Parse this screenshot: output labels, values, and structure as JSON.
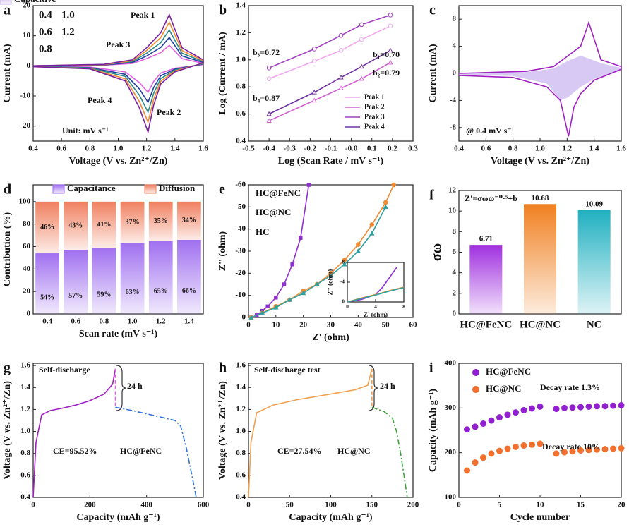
{
  "chart_data": [
    {
      "type": "line",
      "panel": "a",
      "xlabel": "Voltage (V vs. Zn²⁺/Zn)",
      "ylabel": "Current (mA)",
      "xlim": [
        0.4,
        1.6
      ],
      "ylim": [
        -25,
        20
      ],
      "xticks": [
        0.4,
        0.6,
        0.8,
        {
          "value": 1,
          "label": "1.0"
        },
        1.2,
        1.4,
        1.6
      ],
      "yticks": [
        -20,
        -10,
        0,
        10,
        20
      ],
      "annotations": [
        "Peak 1",
        "Peak 3",
        "Peak 4",
        "Peak 2",
        "Unit: mV s⁻¹"
      ],
      "series": [
        {
          "name": "0.4",
          "color": "#e060e0",
          "x": [
            0.4,
            0.9,
            1.1,
            1.2,
            1.3,
            1.36,
            1.45,
            1.6,
            1.6,
            1.4,
            1.3,
            1.25,
            1.21,
            1.15,
            1.05,
            0.8,
            0.4
          ],
          "values": [
            0,
            0.2,
            0.8,
            2.4,
            4.4,
            6.8,
            2.4,
            0.8,
            0.4,
            -0.8,
            -2.4,
            -5.2,
            -8.8,
            -5.6,
            -2,
            -0.4,
            -0.1
          ]
        },
        {
          "name": "0.6",
          "color": "#1f3fa0",
          "x": [
            0.4,
            0.9,
            1.1,
            1.2,
            1.3,
            1.36,
            1.45,
            1.6,
            1.6,
            1.4,
            1.3,
            1.25,
            1.21,
            1.15,
            1.05,
            0.8,
            0.4
          ],
          "values": [
            0,
            0.3,
            1.1,
            3.3,
            6.1,
            9.4,
            3.3,
            1.1,
            0.6,
            -1.1,
            -3.3,
            -7.2,
            -12.1,
            -7.7,
            -2.8,
            -0.6,
            -0.2
          ]
        },
        {
          "name": "0.8",
          "color": "#2a8a8a",
          "x": [
            0.4,
            0.9,
            1.1,
            1.2,
            1.3,
            1.36,
            1.45,
            1.6,
            1.6,
            1.4,
            1.3,
            1.25,
            1.21,
            1.15,
            1.05,
            0.8,
            0.4
          ],
          "values": [
            0,
            0.4,
            1.4,
            4.2,
            7.7,
            11.9,
            4.2,
            1.4,
            0.7,
            -1.4,
            -4.2,
            -9.1,
            -15.4,
            -9.8,
            -3.5,
            -0.7,
            -0.2
          ]
        },
        {
          "name": "1.0",
          "color": "#f08a30",
          "x": [
            0.4,
            0.9,
            1.1,
            1.2,
            1.3,
            1.36,
            1.45,
            1.6,
            1.6,
            1.4,
            1.3,
            1.25,
            1.21,
            1.15,
            1.05,
            0.8,
            0.4
          ],
          "values": [
            0,
            0.4,
            1.7,
            5.1,
            9.4,
            14.5,
            5.1,
            1.7,
            0.9,
            -1.7,
            -5.1,
            -11.1,
            -18.7,
            -11.9,
            -4.3,
            -0.9,
            -0.3
          ]
        },
        {
          "name": "1.2",
          "color": "#7a1fa0",
          "x": [
            0.4,
            0.9,
            1.1,
            1.2,
            1.3,
            1.36,
            1.45,
            1.6,
            1.6,
            1.4,
            1.3,
            1.25,
            1.21,
            1.15,
            1.05,
            0.8,
            0.4
          ],
          "values": [
            0,
            0.5,
            2,
            6,
            11,
            17,
            6,
            2,
            1,
            -2,
            -6,
            -13,
            -22,
            -14,
            -5,
            -1,
            -0.3
          ]
        }
      ]
    },
    {
      "type": "line",
      "panel": "b",
      "xlabel": "Log (Scan Rate / mV s⁻¹)",
      "ylabel": "Log (Current / mA)",
      "xlim": [
        -0.5,
        0.3
      ],
      "ylim": [
        0.4,
        1.4
      ],
      "xticks": [
        -0.5,
        -0.4,
        -0.3,
        -0.2,
        -0.1,
        {
          "value": 0,
          "label": "-0.0"
        },
        0.1,
        0.2,
        0.3
      ],
      "yticks": [
        0.4,
        0.6,
        0.8,
        {
          "value": 1,
          "label": "1.0"
        },
        1.2,
        1.4
      ],
      "annotations": [
        "b₃=0.72",
        "b₁=0.70",
        "b₂=0.79",
        "b₄=0.87"
      ],
      "series": [
        {
          "name": "Peak 1",
          "color": "#f0a8f0",
          "marker": "circle",
          "x": [
            -0.4,
            -0.18,
            -0.05,
            0.05,
            0.19
          ],
          "values": [
            0.86,
            0.99,
            1.07,
            1.15,
            1.25
          ]
        },
        {
          "name": "Peak 2",
          "color": "#d060d0",
          "marker": "triangle",
          "x": [
            -0.4,
            -0.18,
            -0.05,
            0.05,
            0.19
          ],
          "values": [
            0.55,
            0.7,
            0.79,
            0.86,
            0.98
          ]
        },
        {
          "name": "Peak 3",
          "color": "#a040c0",
          "marker": "circle",
          "x": [
            -0.4,
            -0.18,
            -0.05,
            0.05,
            0.19
          ],
          "values": [
            0.94,
            1.08,
            1.18,
            1.26,
            1.33
          ]
        },
        {
          "name": "Peak 4",
          "color": "#7030a0",
          "marker": "triangle",
          "x": [
            -0.4,
            -0.18,
            -0.05,
            0.05,
            0.19
          ],
          "values": [
            0.6,
            0.76,
            0.87,
            0.95,
            1.07
          ]
        }
      ]
    },
    {
      "type": "line",
      "panel": "c",
      "xlabel": "Voltage (V vs. Zn²⁺/Zn)",
      "ylabel": "Current (mA)",
      "xlim": [
        0.4,
        1.6
      ],
      "ylim": [
        -10,
        10
      ],
      "xticks": [
        0.4,
        0.6,
        0.8,
        {
          "value": 1,
          "label": "1.0"
        },
        1.2,
        1.4,
        1.6
      ],
      "yticks": [
        -8,
        -4,
        0,
        4,
        8
      ],
      "annotations": [
        "@ 0.4 mV s⁻¹"
      ],
      "series": [
        {
          "name": "Capacitive",
          "color": "#c8b0f0",
          "fill": true,
          "x": [
            0.4,
            0.9,
            1.1,
            1.2,
            1.3,
            1.36,
            1.45,
            1.6,
            1.6,
            1.4,
            1.3,
            1.25,
            1.21,
            1.15,
            1.05,
            0.8,
            0.4
          ],
          "values": [
            0,
            0.2,
            0.7,
            1.8,
            2.6,
            2.2,
            1.5,
            0.8,
            0.5,
            -0.8,
            -2,
            -2.8,
            -3.5,
            -4,
            -1.5,
            -0.4,
            -0.2
          ]
        },
        {
          "color": "#a020c0",
          "x": [
            0.4,
            0.9,
            1.1,
            1.2,
            1.3,
            1.36,
            1.45,
            1.6,
            1.6,
            1.4,
            1.3,
            1.25,
            1.21,
            1.15,
            1.05,
            0.8,
            0.4
          ],
          "values": [
            0,
            0.3,
            1,
            2.5,
            4,
            7.5,
            2,
            1,
            0.6,
            -1,
            -3,
            -5,
            -9.3,
            -4,
            -2,
            -0.6,
            -0.3
          ]
        }
      ]
    },
    {
      "type": "stacked-bar",
      "panel": "d",
      "xlabel": "Scan rate (mV s⁻¹)",
      "ylabel": "Contribution (%)",
      "categories": [
        "0.4",
        "0.6",
        "0.8",
        "1.0",
        "1.2",
        "1.4"
      ],
      "ylim": [
        0,
        115
      ],
      "yticks": [
        0,
        20,
        40,
        60,
        80,
        100
      ],
      "series": [
        {
          "name": "Capacitance",
          "color": "#a070f0",
          "values": [
            54,
            57,
            59,
            63,
            65,
            66
          ],
          "value_labels": [
            "54%",
            "57%",
            "59%",
            "63%",
            "65%",
            "66%"
          ]
        },
        {
          "name": "Diffusion",
          "color": "#f08060",
          "values": [
            46,
            43,
            41,
            37,
            35,
            34
          ],
          "value_labels": [
            "46%",
            "43%",
            "41%",
            "37%",
            "35%",
            "34%"
          ]
        }
      ]
    },
    {
      "type": "line",
      "panel": "e",
      "xlabel": "Z' (ohm)",
      "ylabel": "Z'' (ohm)",
      "xlim": [
        0,
        60
      ],
      "ylim": [
        0,
        -60
      ],
      "xticks": [
        0,
        10,
        20,
        30,
        40,
        50,
        60
      ],
      "yticks": [
        0,
        -10,
        -20,
        -30,
        -40,
        -50,
        -60
      ],
      "series": [
        {
          "name": "HC@FeNC",
          "color": "#9030d0",
          "marker": "square",
          "x": [
            1,
            3,
            5,
            7,
            10,
            13,
            16,
            19,
            22
          ],
          "values": [
            0,
            -1,
            -3,
            -5,
            -9,
            -15,
            -24,
            -36,
            -60
          ]
        },
        {
          "name": "HC@NC",
          "color": "#f08a30",
          "marker": "circle",
          "x": [
            1,
            5,
            10,
            15,
            20,
            25,
            30,
            35,
            40,
            45,
            50,
            53
          ],
          "values": [
            0,
            -2,
            -5,
            -8,
            -12,
            -15,
            -20,
            -26,
            -33,
            -42,
            -52,
            -60
          ]
        },
        {
          "name": "HC",
          "color": "#30a0a0",
          "marker": "triangle",
          "x": [
            1,
            5,
            10,
            15,
            20,
            25,
            30,
            35,
            40,
            45,
            50
          ],
          "values": [
            0,
            -2,
            -4.5,
            -8,
            -11,
            -15,
            -19,
            -24,
            -30,
            -38,
            -50
          ]
        }
      ]
    },
    {
      "type": "line",
      "xlabel": "Z' (ohm)",
      "ylabel": "Z'' (ohm)",
      "xlim": [
        0,
        8
      ],
      "ylim": [
        0,
        -8
      ],
      "xticks": [
        0,
        4,
        8
      ],
      "yticks": [
        0,
        -4,
        -8
      ],
      "series": [
        {
          "color": "#9030d0",
          "x": [
            0,
            2,
            4,
            5,
            6,
            7
          ],
          "values": [
            0,
            -0.5,
            -1.5,
            -3,
            -5,
            -7
          ]
        },
        {
          "color": "#f08a30",
          "x": [
            0,
            2,
            4,
            6,
            8
          ],
          "values": [
            0,
            -0.8,
            -1.5,
            -2.3,
            -3
          ]
        },
        {
          "color": "#30a0a0",
          "x": [
            0,
            2,
            4,
            6,
            8
          ],
          "values": [
            0,
            -0.7,
            -1.4,
            -2.2,
            -2.9
          ]
        }
      ]
    },
    {
      "type": "bar",
      "panel": "f",
      "ylabel": "σω",
      "annotations": [
        "Z'=σωω⁻⁰·⁵+b"
      ],
      "categories": [
        "HC@FeNC",
        "HC@NC",
        "NC"
      ],
      "values": [
        6.71,
        10.68,
        10.09
      ],
      "colors": [
        "#a030e0",
        "#f08020",
        "#20b0c0"
      ],
      "ylim": [
        0,
        12
      ],
      "yticks": [
        0,
        2,
        4,
        6,
        8,
        10,
        12
      ]
    },
    {
      "type": "line",
      "panel": "g",
      "xlabel": "Capacity (mAh g⁻¹)",
      "ylabel": "Voltage (V vs. Zn²⁺/Zn)",
      "xlim": [
        0,
        600
      ],
      "ylim": [
        0.4,
        1.62
      ],
      "xticks": [
        0,
        200,
        400,
        600
      ],
      "yticks": [
        0.4,
        0.6,
        0.8,
        {
          "value": 1,
          "label": "1.0"
        },
        1.2,
        1.4,
        1.6
      ],
      "annotations": [
        "Self-discharge",
        "24 h",
        "CE=95.52%",
        "HC@FeNC"
      ],
      "series": [
        {
          "color": "#a020c0",
          "x": [
            0,
            10,
            30,
            60,
            100,
            150,
            200,
            250,
            280,
            290
          ],
          "values": [
            0.4,
            0.9,
            1.15,
            1.19,
            1.21,
            1.24,
            1.28,
            1.34,
            1.43,
            1.57
          ]
        },
        {
          "color": "#e060e0",
          "dash": "dashed",
          "x": [
            290,
            290
          ],
          "values": [
            1.57,
            1.22
          ]
        },
        {
          "color": "#3070e0",
          "dash": "dashdot",
          "x": [
            290,
            350,
            400,
            450,
            500,
            520,
            540,
            560,
            575
          ],
          "values": [
            1.22,
            1.19,
            1.16,
            1.13,
            1.1,
            1.05,
            0.85,
            0.6,
            0.4
          ]
        }
      ]
    },
    {
      "type": "line",
      "panel": "h",
      "xlabel": "Capacity (mAh g⁻¹)",
      "ylabel": "Voltage (V vs. Zn²⁺/Zn)",
      "xlim": [
        0,
        200
      ],
      "ylim": [
        0.4,
        1.62
      ],
      "xticks": [
        0,
        50,
        100,
        150,
        200
      ],
      "yticks": [
        0.4,
        0.6,
        0.8,
        {
          "value": 1,
          "label": "1.0"
        },
        1.2,
        1.4,
        1.6
      ],
      "annotations": [
        "Self-discharge test",
        "24 h",
        "CE=27.54%",
        "HC@NC"
      ],
      "series": [
        {
          "color": "#f0a050",
          "x": [
            0,
            3,
            10,
            30,
            60,
            100,
            130,
            145,
            150
          ],
          "values": [
            0.4,
            0.9,
            1.17,
            1.24,
            1.29,
            1.34,
            1.38,
            1.42,
            1.57
          ]
        },
        {
          "color": "#f0a050",
          "dash": "dashed",
          "x": [
            150,
            150
          ],
          "values": [
            1.57,
            1.22
          ]
        },
        {
          "color": "#40a040",
          "dash": "dashdot",
          "x": [
            150,
            165,
            175,
            180,
            185,
            190,
            193
          ],
          "values": [
            1.22,
            1.18,
            1.12,
            1,
            0.8,
            0.55,
            0.4
          ]
        }
      ]
    },
    {
      "type": "scatter",
      "panel": "i",
      "xlabel": "Cycle number",
      "ylabel": "Capacity (mAh g⁻¹)",
      "xlim": [
        0,
        20
      ],
      "ylim": [
        100,
        400
      ],
      "xticks": [
        0,
        5,
        10,
        15,
        20
      ],
      "yticks": [
        100,
        200,
        300,
        400
      ],
      "annotations": [
        "Decay rate 1.3%",
        "Decay rate 10%"
      ],
      "series": [
        {
          "name": "HC@FeNC",
          "color": "#9020d0",
          "x": [
            1,
            2,
            3,
            4,
            5,
            6,
            7,
            8,
            9,
            10,
            12,
            13,
            14,
            15,
            16,
            17,
            18,
            19,
            20
          ],
          "values": [
            252,
            258,
            265,
            272,
            279,
            285,
            290,
            295,
            299,
            303,
            298,
            300,
            301,
            302,
            303,
            304,
            304,
            305,
            306
          ]
        },
        {
          "name": "HC@NC",
          "color": "#f07030",
          "x": [
            1,
            2,
            3,
            4,
            5,
            6,
            7,
            8,
            9,
            10,
            12,
            13,
            14,
            15,
            16,
            17,
            18,
            19,
            20
          ],
          "values": [
            160,
            178,
            189,
            198,
            204,
            209,
            213,
            216,
            218,
            220,
            198,
            201,
            203,
            205,
            206,
            207,
            208,
            209,
            210
          ]
        }
      ]
    }
  ]
}
